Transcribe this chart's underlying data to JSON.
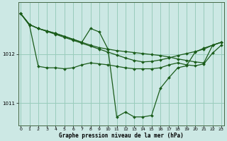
{
  "bg_color": "#cce8e4",
  "line_color": "#1a5c1a",
  "grid_color": "#99ccbb",
  "xlabel": "Graphe pression niveau de la mer (hPa)",
  "ylim": [
    1010.55,
    1013.05
  ],
  "xlim": [
    -0.3,
    23.3
  ],
  "yticks": [
    1011,
    1012
  ],
  "xticks": [
    0,
    1,
    2,
    3,
    4,
    5,
    6,
    7,
    8,
    9,
    10,
    11,
    12,
    13,
    14,
    15,
    16,
    17,
    18,
    19,
    20,
    21,
    22,
    23
  ],
  "series": [
    {
      "y": [
        1012.82,
        1012.58,
        1011.75,
        1011.72,
        1011.72,
        1011.7,
        1011.72,
        1011.78,
        1011.82,
        1011.8,
        1011.78,
        1011.75,
        1011.72,
        1011.7,
        1011.7,
        1011.7,
        1011.72,
        1011.78,
        1011.82,
        1011.78,
        1011.76,
        1011.8,
        1012.02,
        1012.18
      ]
    },
    {
      "y": [
        1012.82,
        1012.6,
        1012.52,
        1012.46,
        1012.4,
        1012.34,
        1012.28,
        1012.22,
        1012.16,
        1012.1,
        1012.04,
        1011.98,
        1011.92,
        1011.87,
        1011.84,
        1011.85,
        1011.88,
        1011.92,
        1011.97,
        1012.01,
        1012.05,
        1012.1,
        1012.18,
        1012.24
      ]
    },
    {
      "y": [
        1012.82,
        1012.6,
        1012.52,
        1012.47,
        1012.42,
        1012.36,
        1012.3,
        1012.24,
        1012.52,
        1012.45,
        1012.1,
        1010.72,
        1010.82,
        1010.72,
        1010.72,
        1010.75,
        1011.3,
        1011.52,
        1011.72,
        1011.76,
        1012.04,
        1012.12,
        1012.18,
        1012.24
      ]
    },
    {
      "y": [
        1012.82,
        1012.6,
        1012.52,
        1012.47,
        1012.42,
        1012.36,
        1012.3,
        1012.24,
        1012.18,
        1012.13,
        1012.1,
        1012.07,
        1012.05,
        1012.03,
        1012.01,
        1011.99,
        1011.97,
        1011.94,
        1011.9,
        1011.87,
        1011.84,
        1011.82,
        1012.18,
        1012.24
      ]
    }
  ]
}
